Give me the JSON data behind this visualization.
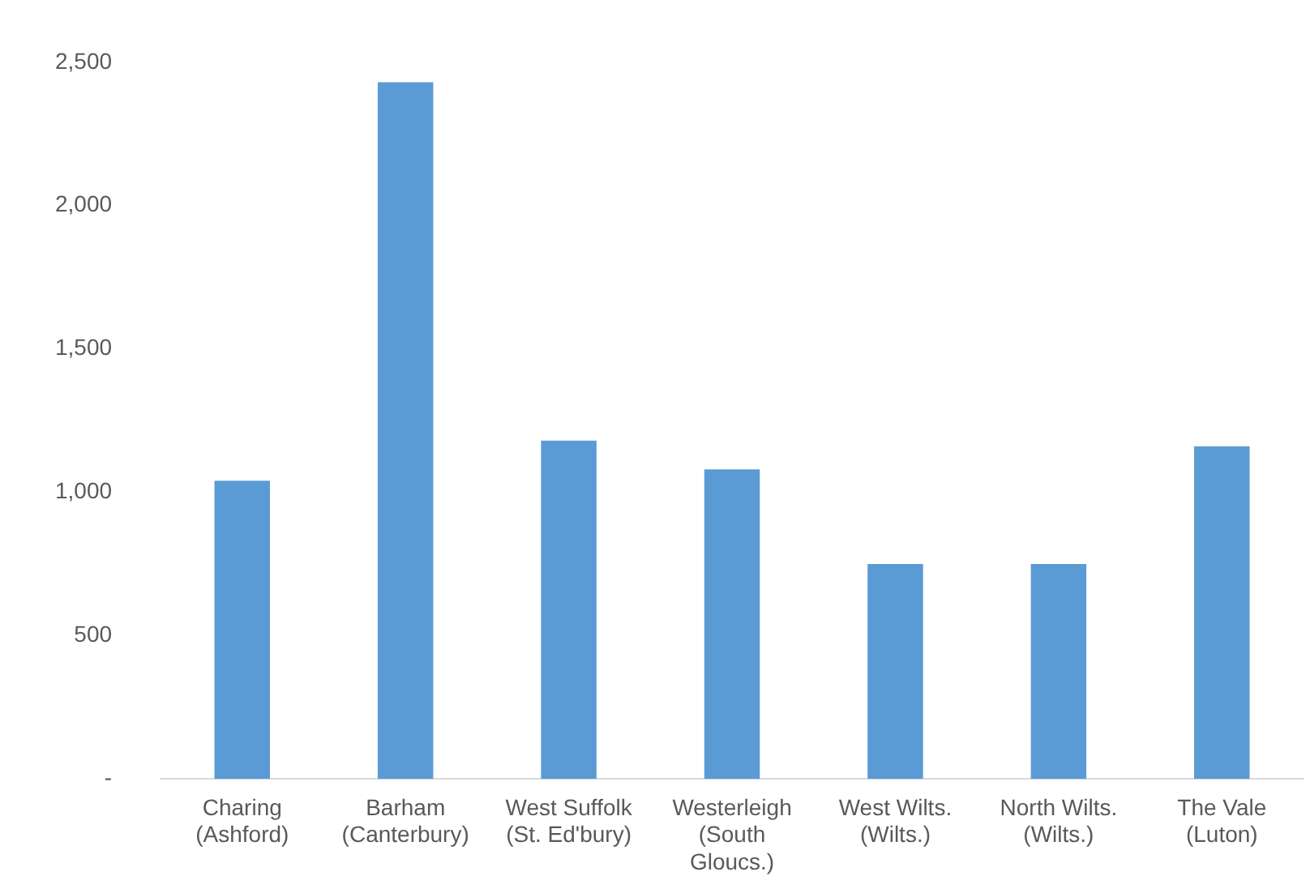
{
  "chart_data": {
    "type": "bar",
    "categories": [
      "Charing\n(Ashford)",
      "Barham\n(Canterbury)",
      "West Suffolk\n(St. Ed'bury)",
      "Westerleigh\n(South\nGloucs.)",
      "West Wilts.\n(Wilts.)",
      "North Wilts.\n(Wilts.)",
      "The Vale\n(Luton)"
    ],
    "values": [
      1040,
      2430,
      1180,
      1080,
      750,
      750,
      1160
    ],
    "color": "#5b9bd5",
    "ylim": [
      0,
      2500
    ],
    "yticks": [
      {
        "value": 0,
        "label": "-"
      },
      {
        "value": 500,
        "label": "500"
      },
      {
        "value": 1000,
        "label": "1,000"
      },
      {
        "value": 1500,
        "label": "1,500"
      },
      {
        "value": 2000,
        "label": "2,000"
      },
      {
        "value": 2500,
        "label": "2,500"
      }
    ],
    "grid": false,
    "legend": false
  }
}
